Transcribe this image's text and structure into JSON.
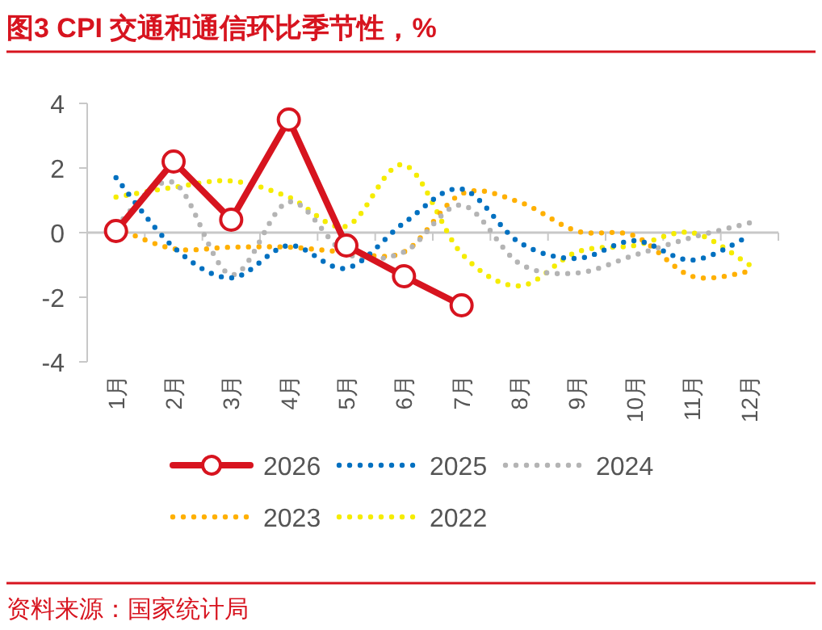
{
  "chart_data": {
    "type": "line",
    "title": "图3  CPI 交通和通信环比季节性，%",
    "categories": [
      "1月",
      "2月",
      "3月",
      "4月",
      "5月",
      "6月",
      "7月",
      "8月",
      "9月",
      "10月",
      "11月",
      "12月"
    ],
    "series": [
      {
        "name": "2026",
        "color": "#d7141f",
        "marker": "circle",
        "line_style": "solid",
        "values": [
          0.05,
          2.2,
          0.4,
          3.5,
          -0.4,
          -1.35,
          -2.25,
          null,
          null,
          null,
          null,
          null
        ]
      },
      {
        "name": "2025",
        "color": "#0070c0",
        "marker": "none",
        "line_style": "dotted",
        "values": [
          1.7,
          -0.45,
          -1.4,
          -0.4,
          -1.1,
          0.3,
          1.35,
          -0.3,
          -0.8,
          -0.25,
          -0.85,
          -0.1
        ]
      },
      {
        "name": "2024",
        "color": "#b4b4b4",
        "marker": "none",
        "line_style": "dotted",
        "values": [
          0.2,
          1.55,
          -1.3,
          0.95,
          -0.65,
          -0.6,
          0.85,
          -0.95,
          -1.25,
          -0.7,
          -0.15,
          0.3
        ]
      },
      {
        "name": "2023",
        "color": "#ffb000",
        "marker": "none",
        "line_style": "dotted",
        "values": [
          0.15,
          -0.5,
          -0.45,
          -0.45,
          -0.6,
          -0.6,
          1.2,
          0.95,
          0.05,
          -0.1,
          -1.35,
          -1.2
        ]
      },
      {
        "name": "2022",
        "color": "#f5ec00",
        "marker": "none",
        "line_style": "dotted",
        "values": [
          1.1,
          1.4,
          1.6,
          1.1,
          0.2,
          2.1,
          -0.65,
          -1.65,
          -0.6,
          -0.4,
          0.0,
          -1.0
        ]
      }
    ],
    "ylim": [
      -4,
      4
    ],
    "yticks": [
      -4,
      -2,
      0,
      2,
      4
    ],
    "legend": "bottom",
    "annotations": [
      "资料来源：国家统计局"
    ]
  }
}
